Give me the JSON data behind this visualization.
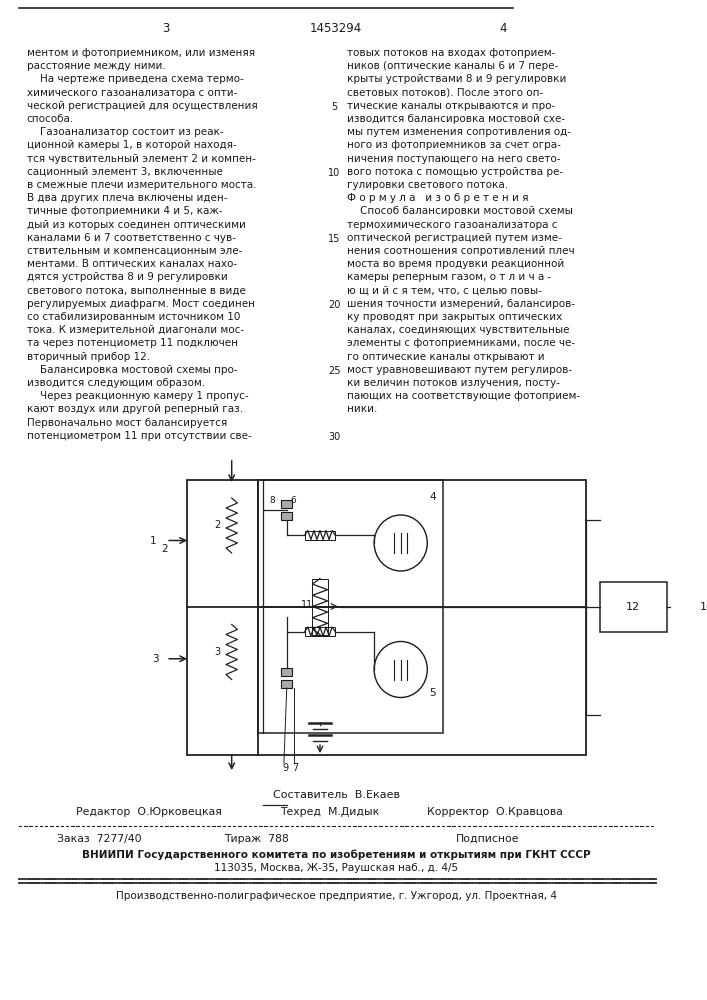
{
  "page_number_left": "3",
  "page_number_center": "1453294",
  "page_number_right": "4",
  "col1_text": [
    "ментом и фотоприемником, или изменяя",
    "расстояние между ними.",
    "    На чертеже приведена схема термо-",
    "химического газоанализатора с опти-",
    "ческой регистрацией для осуществления",
    "способа.",
    "    Газоанализатор состоит из реак-",
    "ционной камеры 1, в которой находя-",
    "тся чувствительный элемент 2 и компен-",
    "сационный элемент 3, включенные",
    "в смежные плечи измерительного моста.",
    "В два других плеча включены иден-",
    "тичные фотоприемники 4 и 5, каж-",
    "дый из которых соединен оптическими",
    "каналами 6 и 7 соответственно с чув-",
    "ствительным и компенсационным эле-",
    "ментами. В оптических каналах нахо-",
    "дятся устройства 8 и 9 регулировки",
    "светового потока, выполненные в виде",
    "регулируемых диафрагм. Мост соединен",
    "со стабилизированным источником 10",
    "тока. К измерительной диагонали мос-",
    "та через потенциометр 11 подключен",
    "вторичный прибор 12.",
    "    Балансировка мостовой схемы про-",
    "изводится следующим образом.",
    "    Через реакционную камеру 1 пропус-",
    "кают воздух или другой реперный газ.",
    "Первоначально мост балансируется",
    "потенциометром 11 при отсутствии све-"
  ],
  "col2_text": [
    "товых потоков на входах фотоприем-",
    "ников (оптические каналы 6 и 7 пере-",
    "крыты устройствами 8 и 9 регулировки",
    "световых потоков). После этого оп-",
    "тические каналы открываются и про-",
    "изводится балансировка мостовой схе-",
    "мы путем изменения сопротивления од-",
    "ного из фотоприемников за счет огра-",
    "ничения поступающего на него свето-",
    "вого потока с помощью устройства ре-",
    "гулировки светового потока.",
    "Ф о р м у л а   и з о б р е т е н и я",
    "    Способ балансировки мостовой схемы",
    "термохимического газоанализатора с",
    "оптической регистрацией путем изме-",
    "нения соотношения сопротивлений плеч",
    "моста во время продувки реакционной",
    "камеры реперным газом, о т л и ч а -",
    "ю щ и й с я тем, что, с целью повы-",
    "шения точности измерений, балансиров-",
    "ку проводят при закрытых оптических",
    "каналах, соединяющих чувствительные",
    "элементы с фотоприемниками, после че-",
    "го оптические каналы открывают и",
    "мост уравновешивают путем регулиров-",
    "ки величин потоков излучения, посту-",
    "пающих на соответствующие фотоприем-",
    "ники."
  ],
  "sestavitel": "Составитель  В.Екаев",
  "editor_left": "Редактор  О.Юрковецкая",
  "editor_mid": "Техред  М.Дидык",
  "editor_right": "Корректор  О.Кравцова",
  "zakaz": "Заказ  7277/40",
  "tirazh": "Тираж  788",
  "podpisnoe": "Подписное",
  "vniipи_line1": "ВНИИПИ Государственного комитета по изобретениям и открытиям при ГКНТ СССР",
  "vniipи_line2": "113035, Москва, Ж-35, Раушская наб., д. 4/5",
  "factory_line": "Производственно-полиграфическое предприятие, г. Ужгород, ул. Проектная, 4",
  "bg_color": "#ffffff",
  "text_color": "#1a1a1a",
  "line_color": "#222222"
}
